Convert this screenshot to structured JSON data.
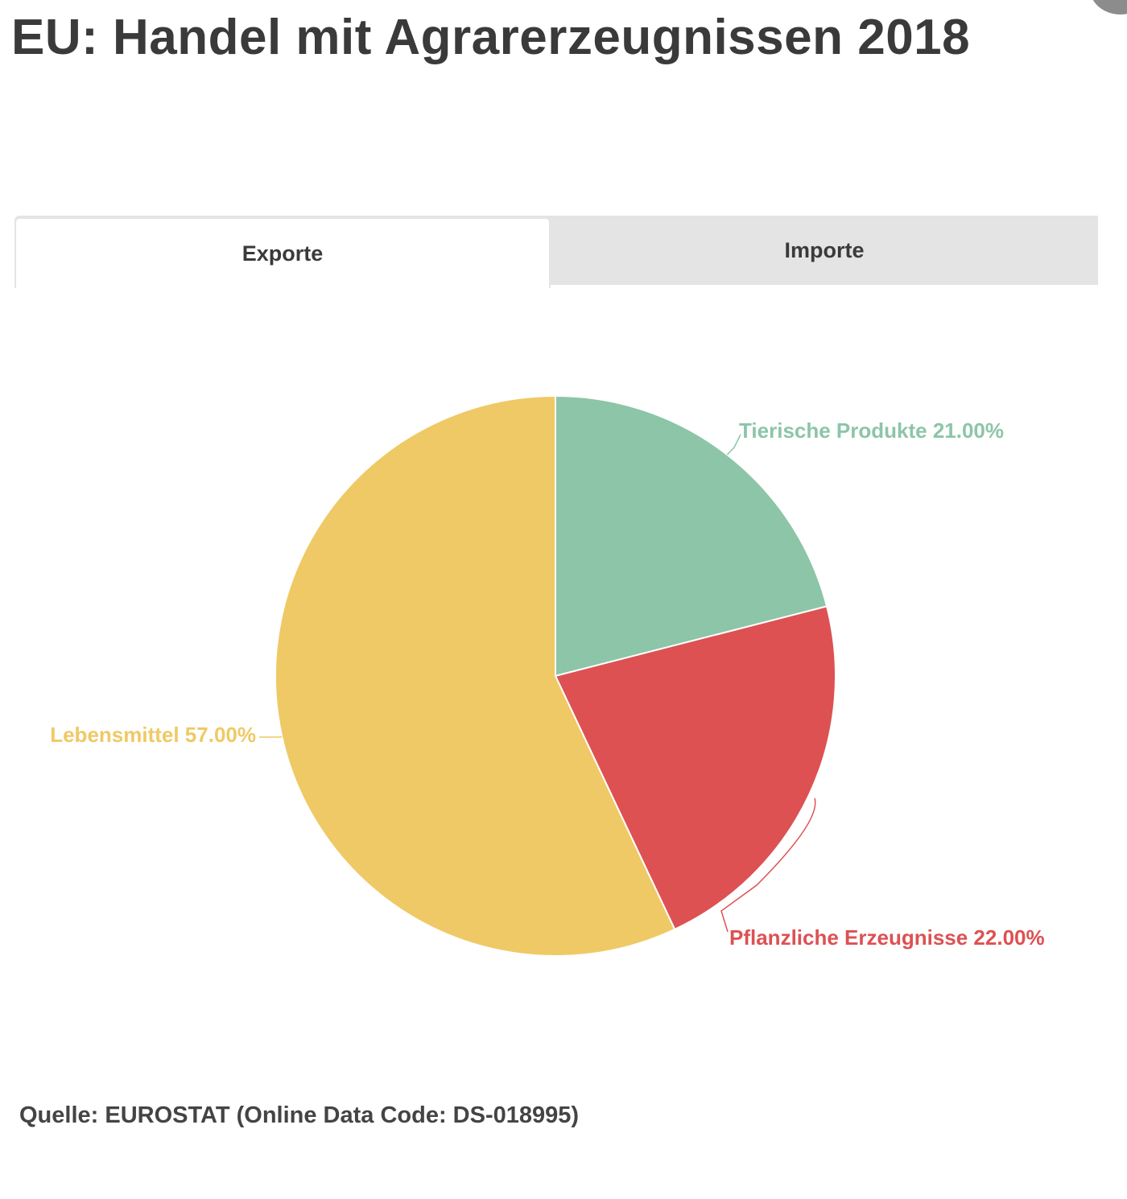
{
  "header": {
    "title": "EU: Handel mit Agrarerzeugnissen 2018"
  },
  "tabs": [
    {
      "label": "Exporte",
      "active": true
    },
    {
      "label": "Importe",
      "active": false
    }
  ],
  "chart_data": {
    "type": "pie",
    "title": "",
    "slices": [
      {
        "label": "Tierische Produkte",
        "value": 21.0,
        "display": "Tierische Produkte 21.00%",
        "color": "#8cc5a8"
      },
      {
        "label": "Pflanzliche Erzeugnisse",
        "value": 22.0,
        "display": "Pflanzliche Erzeugnisse 22.00%",
        "color": "#dd5153"
      },
      {
        "label": "Lebensmittel",
        "value": 57.0,
        "display": "Lebensmittel 57.00%",
        "color": "#efc965"
      }
    ],
    "start": "top",
    "direction": "clockwise",
    "legend": "none",
    "data_labels": "outside-with-leader-lines"
  },
  "footer": {
    "source": "Quelle: EUROSTAT (Online Data Code: DS-018995)"
  }
}
